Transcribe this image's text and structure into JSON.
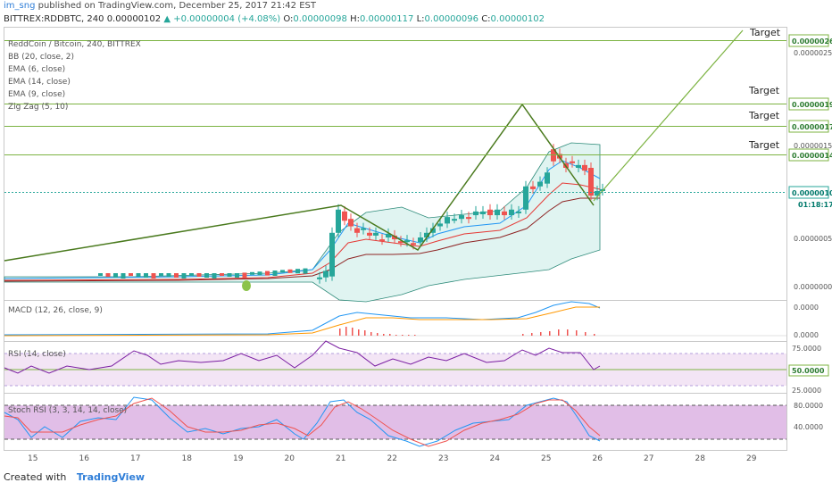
{
  "header": {
    "user": "im_sng",
    "published_text": " published on TradingView.com, December 25, 2017 21:42 EST",
    "symbol": "BITTREX:RDDBTC, 240",
    "price": "0.00000102",
    "change": "▲ +0.00000004 (+4.08%)",
    "o_label": "O:",
    "o": "0.00000098",
    "h_label": "H:",
    "h": "0.00000117",
    "l_label": "L:",
    "l": "0.00000096",
    "c_label": "C:",
    "c": "0.00000102"
  },
  "legend": {
    "title": "ReddCoin / Bitcoin, 240, BITTREX",
    "bb": "BB (20, close, 2)",
    "ema6": "EMA (6, close)",
    "ema14": "EMA (14, close)",
    "ema9": "EMA (9, close)",
    "zigzag": "Zig Zag (5, 10)"
  },
  "price_axis": {
    "ticks": [
      "0.00000250",
      "0.00000150",
      "0.00000050",
      "0.00000000"
    ],
    "target_labels": [
      "0.00000263",
      "0.00000196",
      "0.00000172",
      "0.00000141"
    ],
    "last_price": "0.00000102",
    "countdown": "01:18:17"
  },
  "targets": [
    "Target",
    "Target",
    "Target",
    "Target"
  ],
  "macd": {
    "label": "MACD (12, 26, close, 9)",
    "ticks": [
      "0.0000",
      "0.0000"
    ]
  },
  "rsi": {
    "label": "RSI (14, close)",
    "ticks": [
      "75.0000",
      "50.0000",
      "25.0000"
    ]
  },
  "stoch": {
    "label": "Stoch RSI (3, 3, 14, 14, close)",
    "ticks": [
      "80.0000",
      "40.0000"
    ]
  },
  "x_axis": {
    "labels": [
      "15",
      "16",
      "17",
      "18",
      "19",
      "20",
      "21",
      "22",
      "23",
      "24",
      "25",
      "26",
      "27",
      "28",
      "29"
    ]
  },
  "footer": {
    "created_with": "Created with",
    "brand": "TradingView"
  },
  "colors": {
    "up_candle": "#26a69a",
    "down_candle": "#ef5350",
    "zigzag": "#4a7a1e",
    "target_line": "#7cb342",
    "bb_fill": "#e0f4f1",
    "rsi_band": "#f3e5f5",
    "stoch_band": "#e1bee7"
  },
  "chart_data": {
    "type": "candlestick",
    "x_axis": "Dec 15 - Dec 29, 2017",
    "candles_close": [
      0.03,
      0.035,
      0.03,
      0.04,
      0.045,
      0.04,
      0.05,
      0.06,
      0.06,
      0.07,
      0.12,
      0.6,
      0.78,
      0.7,
      0.55,
      0.55,
      0.45,
      0.5,
      0.62,
      0.68,
      0.72,
      0.75,
      0.8,
      0.82,
      1.05,
      1.35,
      1.32,
      1.22,
      1.02,
      1.02
    ],
    "zigzag_points": [
      [
        15.0,
        0.3
      ],
      [
        21.0,
        0.8
      ],
      [
        22.5,
        0.45
      ],
      [
        24.5,
        1.95
      ],
      [
        25.8,
        0.96
      ]
    ],
    "targets": [
      2.63,
      1.96,
      1.72,
      1.41
    ],
    "ylim": [
      0,
      2.7
    ],
    "rsi_levels": [
      75,
      50,
      25
    ],
    "stoch_levels": [
      80,
      20
    ]
  }
}
